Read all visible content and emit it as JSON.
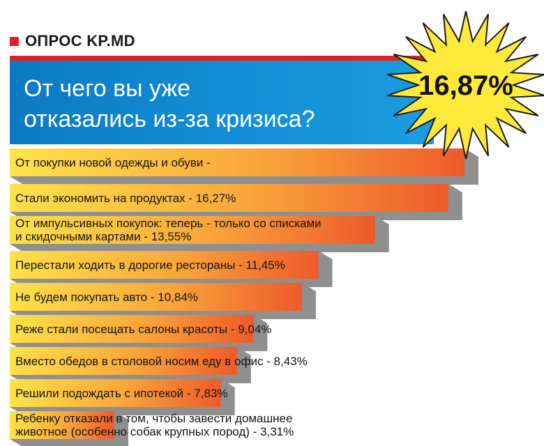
{
  "header": {
    "source_label": "ОПРОС KP.MD",
    "title": "От чего вы уже\nотказались из-за кризиса?"
  },
  "colors": {
    "bar_start": "#ffe24a",
    "bar_end": "#ee5a2b",
    "bar_shadow": "#8f8f8f",
    "accent_red": "#e01f26",
    "title_blue": "#138ed8",
    "burst_yellow": "#ffe93a"
  },
  "chart_data": {
    "type": "bar",
    "orientation": "horizontal",
    "title": "От чего вы уже отказались из-за кризиса?",
    "categories": [
      "От покупки новой одежды и обуви",
      "Стали экономить на продуктах",
      "От импульсивных покупок: теперь - только со списками и скидочными картами",
      "Перестали ходить в дорогие рестораны",
      "Не будем покупать авто",
      "Реже стали посещать салоны красоты",
      "Вместо обедов в столовой носим еду в офис",
      "Решили подождать с ипотекой",
      "Ребенку отказали в том, чтобы завести домашнее животное (особенно собак крупных пород)"
    ],
    "values": [
      16.87,
      16.27,
      13.55,
      11.45,
      10.84,
      9.04,
      8.43,
      7.83,
      3.31
    ],
    "bar_labels": [
      [
        "От покупки новой одежды и обуви -"
      ],
      [
        "Стали экономить на продуктах - 16,27%"
      ],
      [
        "От импульсивных покупок: теперь - только со списками",
        "и скидочными картами - 13,55%"
      ],
      [
        "Перестали ходить в дорогие рестораны - 11,45%"
      ],
      [
        "Не будем покупать авто - 10,84%"
      ],
      [
        "Реже стали посещать салоны красоты - 9,04%"
      ],
      [
        "Вместо обедов в столовой носим еду в офис - 8,43%"
      ],
      [
        "Решили подождать с ипотекой - 7,83%"
      ],
      [
        "Ребенку отказали в том, чтобы завести домашнее",
        "животное (особенно собак крупных пород) - 3,31%"
      ]
    ],
    "highlight_value_label": "16,87%",
    "unit": "%"
  }
}
